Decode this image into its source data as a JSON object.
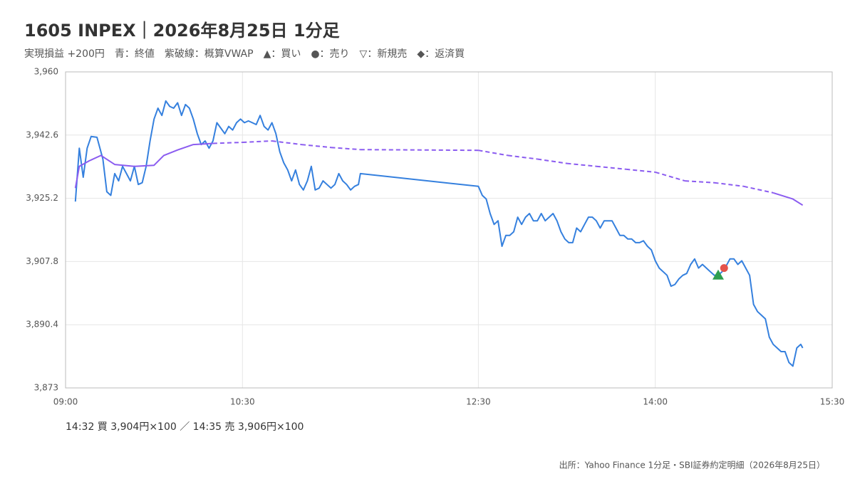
{
  "chart_data": {
    "type": "line",
    "title": "1605 INPEX｜2026年8月25日 1分足",
    "subtitle": "実現損益 +200円　青：終値　紫破線：概算VWAP　▲：買い　●：売り　▽：新規売　◆：返済買",
    "xlim": [
      "09:00",
      "15:30"
    ],
    "xticks": [
      "09:00",
      "10:30",
      "12:30",
      "14:00",
      "15:30"
    ],
    "ylim": [
      3873,
      3960
    ],
    "yticks": [
      {
        "value": 3873,
        "label": "3,873"
      },
      {
        "value": 3890.4,
        "label": "3,890.4"
      },
      {
        "value": 3907.8,
        "label": "3,907.8"
      },
      {
        "value": 3925.2,
        "label": "3,925.2"
      },
      {
        "value": 3942.6,
        "label": "3,942.6"
      },
      {
        "value": 3960,
        "label": "3,960"
      }
    ],
    "grid": true,
    "series": [
      {
        "color": "#3580de",
        "style": "solid",
        "x": [
          "09:05",
          "09:07",
          "09:09",
          "09:11",
          "09:13",
          "09:16",
          "09:19",
          "09:21",
          "09:23",
          "09:25",
          "09:27",
          "09:29",
          "09:31",
          "09:33",
          "09:35",
          "09:37",
          "09:39",
          "09:41",
          "09:43",
          "09:45",
          "09:47",
          "09:49",
          "09:51",
          "09:53",
          "09:55",
          "09:57",
          "09:59",
          "10:01",
          "10:03",
          "10:05",
          "10:07",
          "10:09",
          "10:11",
          "10:13",
          "10:15",
          "10:17",
          "10:19",
          "10:21",
          "10:23",
          "10:25",
          "10:27",
          "10:29",
          "10:31",
          "10:33",
          "10:35",
          "10:37",
          "10:39",
          "10:41",
          "10:43",
          "10:45",
          "10:47",
          "10:49",
          "10:51",
          "10:53",
          "10:55",
          "10:57",
          "10:59",
          "11:01",
          "11:03",
          "11:05",
          "11:07",
          "11:09",
          "11:11",
          "11:13",
          "11:15",
          "11:17",
          "11:19",
          "11:21",
          "11:23",
          "11:25",
          "11:27",
          "11:29",
          "11:30",
          "12:30",
          "12:32",
          "12:34",
          "12:36",
          "12:38",
          "12:40",
          "12:42",
          "12:44",
          "12:46",
          "12:48",
          "12:50",
          "12:52",
          "12:54",
          "12:56",
          "12:58",
          "13:00",
          "13:02",
          "13:04",
          "13:06",
          "13:08",
          "13:10",
          "13:12",
          "13:14",
          "13:16",
          "13:18",
          "13:20",
          "13:22",
          "13:24",
          "13:26",
          "13:28",
          "13:30",
          "13:32",
          "13:34",
          "13:36",
          "13:38",
          "13:40",
          "13:42",
          "13:44",
          "13:46",
          "13:48",
          "13:50",
          "13:52",
          "13:54",
          "13:56",
          "13:58",
          "14:00",
          "14:02",
          "14:04",
          "14:06",
          "14:08",
          "14:10",
          "14:12",
          "14:14",
          "14:16",
          "14:18",
          "14:20",
          "14:22",
          "14:24",
          "14:26",
          "14:28",
          "14:30",
          "14:32",
          "14:34",
          "14:36",
          "14:38",
          "14:40",
          "14:42",
          "14:44",
          "14:46",
          "14:48",
          "14:50",
          "14:52",
          "14:54",
          "14:56",
          "14:58",
          "15:00",
          "15:02",
          "15:04",
          "15:06",
          "15:08",
          "15:10",
          "15:12",
          "15:14",
          "15:15"
        ],
        "values": [
          3924.3,
          3939,
          3931,
          3939,
          3942.2,
          3942,
          3936,
          3927,
          3926,
          3932,
          3930,
          3934,
          3932,
          3930,
          3934,
          3929,
          3929.5,
          3934,
          3941,
          3947,
          3950,
          3948,
          3952,
          3950.5,
          3950,
          3951.5,
          3948,
          3951,
          3950,
          3947,
          3943,
          3940,
          3941,
          3939,
          3941,
          3946,
          3944.5,
          3943,
          3945,
          3944,
          3946,
          3947,
          3946,
          3946.5,
          3946,
          3945.5,
          3948,
          3945,
          3944,
          3946,
          3943,
          3938,
          3935,
          3933,
          3930,
          3933,
          3929,
          3927.5,
          3930,
          3934,
          3927.5,
          3928,
          3930,
          3929,
          3928,
          3929,
          3932,
          3930,
          3929,
          3927.5,
          3928.5,
          3929,
          3932,
          3928.5,
          3926,
          3925,
          3921,
          3918,
          3919,
          3912,
          3915,
          3915,
          3916,
          3920,
          3918,
          3920,
          3921,
          3919,
          3919,
          3921,
          3919,
          3920,
          3921,
          3919,
          3916,
          3914,
          3913,
          3913,
          3917,
          3916,
          3918,
          3920,
          3920,
          3919,
          3917,
          3919,
          3919,
          3919,
          3917,
          3915,
          3915,
          3914,
          3914,
          3913,
          3913,
          3913.5,
          3912,
          3911,
          3908,
          3906,
          3905,
          3904,
          3901,
          3901.5,
          3903,
          3904,
          3904.5,
          3907,
          3908.5,
          3906,
          3907,
          3906,
          3905,
          3904,
          3904,
          3905,
          3906.5,
          3908.5,
          3908.5,
          3907,
          3908,
          3906,
          3904,
          3896,
          3894,
          3893,
          3892,
          3887,
          3885,
          3884,
          3883,
          3883,
          3880,
          3879,
          3884,
          3885,
          3884
        ]
      },
      {
        "color": "#8b5cf0",
        "style": "dashed-gaps",
        "x": [
          "09:05",
          "09:07",
          "09:12",
          "09:18",
          "09:25",
          "09:35",
          "09:45",
          "09:50",
          "09:57",
          "10:05",
          "10:15",
          "10:30",
          "10:45",
          "11:00",
          "11:15",
          "11:30",
          "12:30",
          "12:45",
          "13:00",
          "13:15",
          "13:30",
          "13:45",
          "14:00",
          "14:15",
          "14:30",
          "14:45",
          "15:00",
          "15:10",
          "15:15"
        ],
        "values": [
          3928,
          3934,
          3935.5,
          3937,
          3934.5,
          3934,
          3934.3,
          3937,
          3938.5,
          3940,
          3940.3,
          3940.6,
          3941,
          3940,
          3939.2,
          3938.6,
          3938.4,
          3937,
          3936,
          3934.8,
          3934,
          3933.2,
          3932.4,
          3930,
          3929.5,
          3928.5,
          3926.7,
          3925,
          3923.3
        ]
      }
    ],
    "markers": [
      {
        "x": "14:32",
        "value": 3904,
        "shape": "triangle",
        "color": "#2e9e4f"
      },
      {
        "x": "14:35",
        "value": 3906,
        "shape": "circle",
        "color": "#e5534b"
      }
    ],
    "annotation": "14:32 買 3,904円×100 ／ 14:35 売 3,906円×100",
    "source": "出所：Yahoo Finance 1分足・SBI証券約定明細（2026年8月25日）"
  }
}
